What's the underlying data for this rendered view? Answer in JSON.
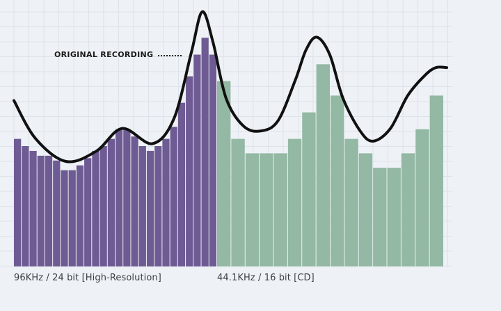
{
  "chart_data": {
    "type": "bar",
    "title": "",
    "xlabel": "",
    "ylabel": "",
    "ylim": [
      0,
      100
    ],
    "grid": true,
    "annotation": "ORIGINAL RECORDING",
    "series": [
      {
        "name": "96KHz / 24 bit [High-Resolution]",
        "color": "#6e5b93",
        "values": [
          53,
          50,
          48,
          46,
          46,
          44,
          40,
          40,
          42,
          45,
          48,
          50,
          53,
          57,
          57,
          54,
          50,
          48,
          50,
          53,
          58,
          68,
          79,
          88,
          95,
          88
        ]
      },
      {
        "name": "44.1KHz / 16 bit [CD]",
        "color": "#93b8a3",
        "values": [
          77,
          53,
          47,
          47,
          47,
          53,
          64,
          84,
          71,
          53,
          47,
          41,
          41,
          47,
          57,
          71
        ]
      }
    ],
    "original_curve": [
      [
        0,
        65
      ],
      [
        0.05,
        50
      ],
      [
        0.12,
        41
      ],
      [
        0.19,
        45
      ],
      [
        0.25,
        54
      ],
      [
        0.32,
        48
      ],
      [
        0.37,
        58
      ],
      [
        0.41,
        84
      ],
      [
        0.435,
        100
      ],
      [
        0.46,
        88
      ],
      [
        0.49,
        66
      ],
      [
        0.53,
        55
      ],
      [
        0.57,
        53
      ],
      [
        0.61,
        57
      ],
      [
        0.65,
        73
      ],
      [
        0.675,
        85
      ],
      [
        0.7,
        90
      ],
      [
        0.73,
        83
      ],
      [
        0.76,
        66
      ],
      [
        0.8,
        53
      ],
      [
        0.83,
        49
      ],
      [
        0.87,
        54
      ],
      [
        0.91,
        67
      ],
      [
        0.95,
        75
      ],
      [
        0.975,
        78
      ],
      [
        1,
        78
      ]
    ]
  },
  "labels": {
    "annotation": "ORIGINAL RECORDING",
    "hires_caption": "96KHz / 24 bit [High-Resolution]",
    "cd_caption": "44.1KHz / 16 bit [CD]"
  }
}
